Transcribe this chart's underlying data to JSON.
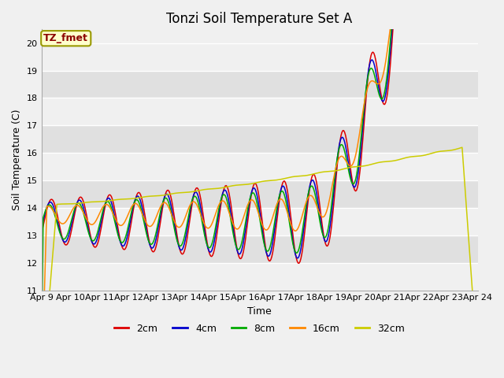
{
  "title": "Tonzi Soil Temperature Set A",
  "xlabel": "Time",
  "ylabel": "Soil Temperature (C)",
  "ylim": [
    11.0,
    20.5
  ],
  "yticks": [
    11.0,
    12.0,
    13.0,
    14.0,
    15.0,
    16.0,
    17.0,
    18.0,
    19.0,
    20.0
  ],
  "xtick_labels": [
    "Apr 9",
    "Apr 10",
    "Apr 11",
    "Apr 12",
    "Apr 13",
    "Apr 14",
    "Apr 15",
    "Apr 16",
    "Apr 17",
    "Apr 18",
    "Apr 19",
    "Apr 20",
    "Apr 21",
    "Apr 22",
    "Apr 23",
    "Apr 24"
  ],
  "series_colors": [
    "#dd0000",
    "#0000cc",
    "#00aa00",
    "#ff8800",
    "#cccc00"
  ],
  "series_labels": [
    "2cm",
    "4cm",
    "8cm",
    "16cm",
    "32cm"
  ],
  "legend_label": "TZ_fmet",
  "legend_box_facecolor": "#ffffcc",
  "legend_box_edgecolor": "#999900",
  "band_colors": [
    "#f0f0f0",
    "#e0e0e0"
  ],
  "outer_bg": "#f0f0f0",
  "grid_color": "#ffffff",
  "n_points": 480,
  "title_fontsize": 12,
  "axis_label_fontsize": 9,
  "tick_fontsize": 8
}
